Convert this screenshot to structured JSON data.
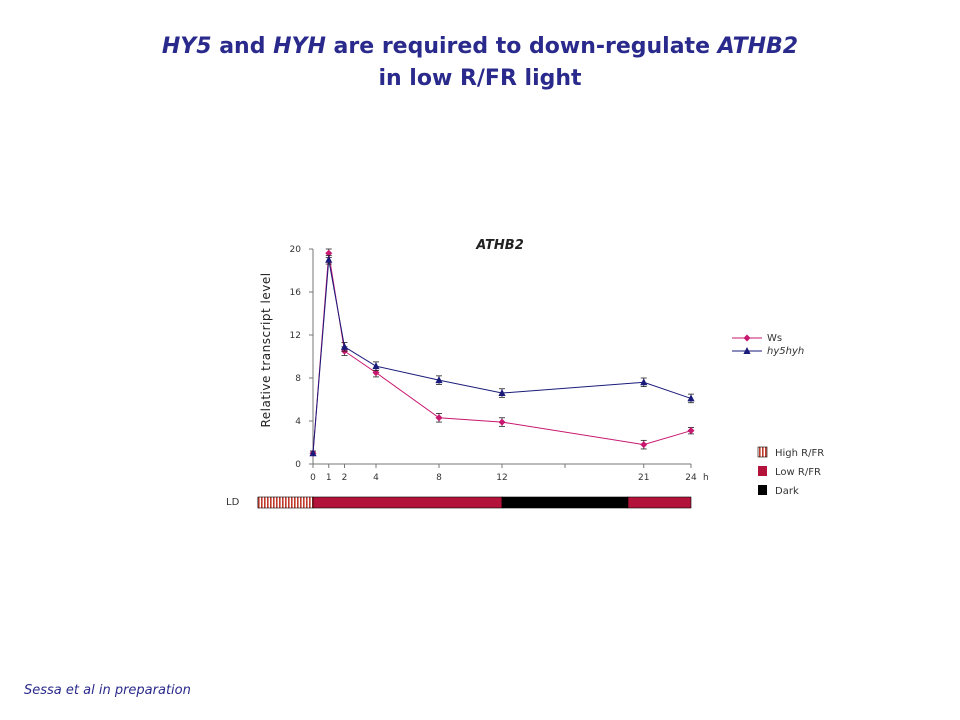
{
  "slide": {
    "title_line1": {
      "p1": "HY5",
      "p2": " and ",
      "p3": "HYH",
      "p4": " are required to down-regulate ",
      "p5": "ATHB2"
    },
    "title_line2": "in low R/FR light",
    "footer": "Sessa et al in preparation"
  },
  "chart_data": {
    "type": "line",
    "title": "ATHB2",
    "xlabel": "",
    "x_unit": "h",
    "ylabel": "Relative transcript level",
    "xlim": [
      0,
      24
    ],
    "ylim": [
      0,
      20
    ],
    "x_ticks": [
      0,
      1,
      2,
      4,
      8,
      12,
      16,
      21,
      24
    ],
    "x_tick_labels": [
      "0",
      "1",
      "2",
      "4",
      "8",
      "12",
      "",
      "21",
      "24"
    ],
    "y_ticks": [
      0,
      4,
      8,
      12,
      16,
      20
    ],
    "y_tick_labels": [
      "0",
      "4",
      "8",
      "12",
      "16",
      "20"
    ],
    "grid": false,
    "legend_position": "right",
    "x": [
      0,
      1,
      2,
      4,
      8,
      12,
      21,
      24
    ],
    "series": [
      {
        "name": "Ws",
        "color": "#c8176f",
        "marker": "diamond",
        "values": [
          1.0,
          19.6,
          10.5,
          8.5,
          4.3,
          3.9,
          1.8,
          3.1
        ],
        "errors": [
          0.2,
          0.4,
          0.4,
          0.4,
          0.4,
          0.4,
          0.4,
          0.3
        ]
      },
      {
        "name": "hy5hyh",
        "color": "#1a1a7a",
        "marker": "triangle",
        "values": [
          1.0,
          19.0,
          10.9,
          9.1,
          7.8,
          6.6,
          7.6,
          6.1
        ],
        "errors": [
          0.2,
          0.4,
          0.4,
          0.4,
          0.4,
          0.4,
          0.4,
          0.4
        ]
      }
    ],
    "light_bar": {
      "label": "LD",
      "segments": [
        {
          "from": -3.5,
          "to": 0,
          "kind": "high"
        },
        {
          "from": 0,
          "to": 12,
          "kind": "low"
        },
        {
          "from": 12,
          "to": 20,
          "kind": "dark"
        },
        {
          "from": 20,
          "to": 24,
          "kind": "low"
        }
      ]
    },
    "light_legend": [
      {
        "kind": "high",
        "label": "High R/FR"
      },
      {
        "kind": "low",
        "label": "Low R/FR"
      },
      {
        "kind": "dark",
        "label": "Dark"
      }
    ],
    "colors": {
      "low": "#b3133a",
      "dark": "#000000",
      "high_stripe": "#c0392b"
    }
  }
}
